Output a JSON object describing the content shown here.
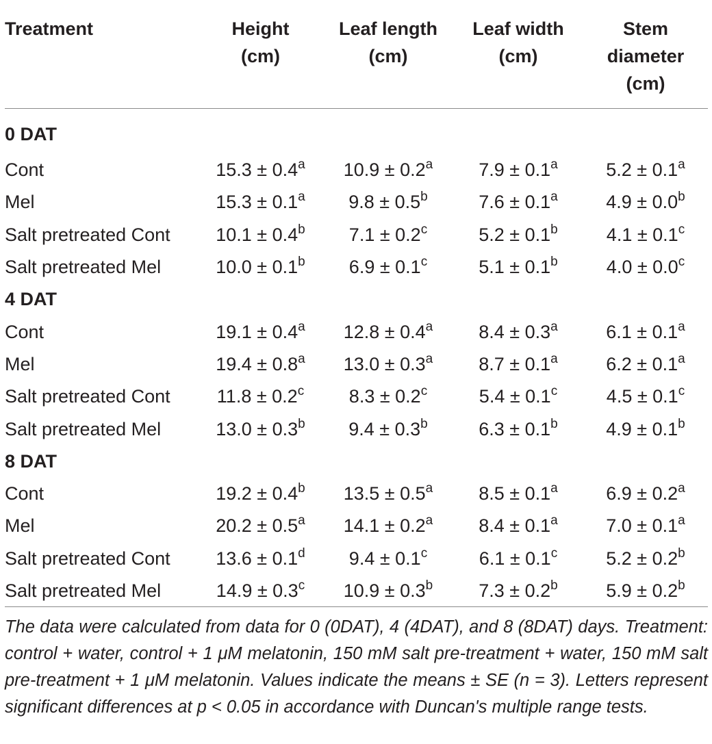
{
  "table": {
    "headers": [
      {
        "line1": "Treatment",
        "line2": "",
        "line3": ""
      },
      {
        "line1": "Height",
        "line2": "(cm)",
        "line3": ""
      },
      {
        "line1": "Leaf length",
        "line2": "(cm)",
        "line3": ""
      },
      {
        "line1": "Leaf width",
        "line2": "(cm)",
        "line3": ""
      },
      {
        "line1": "Stem",
        "line2": "diameter",
        "line3": "(cm)"
      }
    ],
    "groups": [
      {
        "label": "0 DAT",
        "rows": [
          {
            "treatment": "Cont",
            "cells": [
              [
                "15.3 ± 0.4",
                "a"
              ],
              [
                "10.9 ± 0.2",
                "a"
              ],
              [
                "7.9 ± 0.1",
                "a"
              ],
              [
                "5.2 ± 0.1",
                "a"
              ]
            ]
          },
          {
            "treatment": "Mel",
            "cells": [
              [
                "15.3 ± 0.1",
                "a"
              ],
              [
                "9.8 ± 0.5",
                "b"
              ],
              [
                "7.6 ± 0.1",
                "a"
              ],
              [
                "4.9 ± 0.0",
                "b"
              ]
            ]
          },
          {
            "treatment": "Salt pretreated Cont",
            "cells": [
              [
                "10.1 ± 0.4",
                "b"
              ],
              [
                "7.1 ± 0.2",
                "c"
              ],
              [
                "5.2 ± 0.1",
                "b"
              ],
              [
                "4.1 ± 0.1",
                "c"
              ]
            ]
          },
          {
            "treatment": "Salt pretreated Mel",
            "cells": [
              [
                "10.0 ± 0.1",
                "b"
              ],
              [
                "6.9 ± 0.1",
                "c"
              ],
              [
                "5.1 ± 0.1",
                "b"
              ],
              [
                "4.0 ± 0.0",
                "c"
              ]
            ]
          }
        ]
      },
      {
        "label": "4 DAT",
        "rows": [
          {
            "treatment": "Cont",
            "cells": [
              [
                "19.1 ± 0.4",
                "a"
              ],
              [
                "12.8 ± 0.4",
                "a"
              ],
              [
                "8.4 ± 0.3",
                "a"
              ],
              [
                "6.1 ± 0.1",
                "a"
              ]
            ]
          },
          {
            "treatment": "Mel",
            "cells": [
              [
                "19.4 ± 0.8",
                "a"
              ],
              [
                "13.0 ± 0.3",
                "a"
              ],
              [
                "8.7 ± 0.1",
                "a"
              ],
              [
                "6.2 ± 0.1",
                "a"
              ]
            ]
          },
          {
            "treatment": "Salt pretreated Cont",
            "cells": [
              [
                "11.8 ± 0.2",
                "c"
              ],
              [
                "8.3 ± 0.2",
                "c"
              ],
              [
                "5.4 ± 0.1",
                "c"
              ],
              [
                "4.5 ± 0.1",
                "c"
              ]
            ]
          },
          {
            "treatment": "Salt pretreated Mel",
            "cells": [
              [
                "13.0 ± 0.3",
                "b"
              ],
              [
                "9.4 ± 0.3",
                "b"
              ],
              [
                "6.3 ± 0.1",
                "b"
              ],
              [
                "4.9 ± 0.1",
                "b"
              ]
            ]
          }
        ]
      },
      {
        "label": "8 DAT",
        "rows": [
          {
            "treatment": "Cont",
            "cells": [
              [
                "19.2 ± 0.4",
                "b"
              ],
              [
                "13.5 ± 0.5",
                "a"
              ],
              [
                "8.5 ± 0.1",
                "a"
              ],
              [
                "6.9 ± 0.2",
                "a"
              ]
            ]
          },
          {
            "treatment": "Mel",
            "cells": [
              [
                "20.2 ± 0.5",
                "a"
              ],
              [
                "14.1 ± 0.2",
                "a"
              ],
              [
                "8.4 ± 0.1",
                "a"
              ],
              [
                "7.0 ± 0.1",
                "a"
              ]
            ]
          },
          {
            "treatment": "Salt pretreated Cont",
            "cells": [
              [
                "13.6 ± 0.1",
                "d"
              ],
              [
                "9.4 ± 0.1",
                "c"
              ],
              [
                "6.1 ± 0.1",
                "c"
              ],
              [
                "5.2 ± 0.2",
                "b"
              ]
            ]
          },
          {
            "treatment": "Salt pretreated Mel",
            "cells": [
              [
                "14.9 ± 0.3",
                "c"
              ],
              [
                "10.9 ± 0.3",
                "b"
              ],
              [
                "7.3 ± 0.2",
                "b"
              ],
              [
                "5.9 ± 0.2",
                "b"
              ]
            ]
          }
        ]
      }
    ]
  },
  "footnote": "The data were calculated from data for 0 (0DAT), 4 (4DAT), and 8 (8DAT) days. Treatment: control + water, control + 1 μM melatonin, 150 mM salt pre-treatment + water, 150 mM salt pre-treatment + 1 μM melatonin. Values indicate the means ± SE (n = 3). Letters represent significant differences at p < 0.05 in accordance with Duncan's multiple range tests."
}
